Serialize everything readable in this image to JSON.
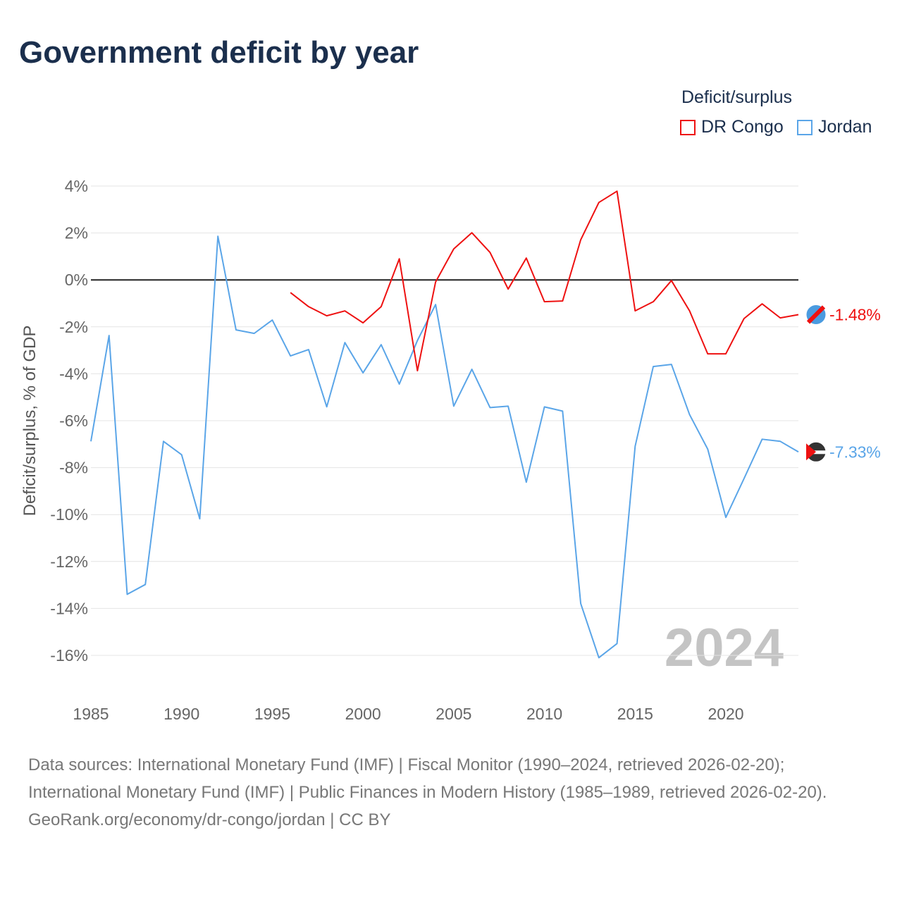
{
  "title": "Government deficit by year",
  "legend": {
    "title": "Deficit/surplus",
    "items": [
      {
        "name": "DR Congo",
        "color": "#ee1111"
      },
      {
        "name": "Jordan",
        "color": "#5aa5e8"
      }
    ]
  },
  "chart_data": {
    "type": "line",
    "title": "Government deficit by year",
    "ylabel": "Deficit/surplus, % of GDP",
    "xlabel": "",
    "ylim": [
      -16,
      4
    ],
    "xlim": [
      1985,
      2024
    ],
    "yticks": [
      4,
      2,
      0,
      -2,
      -4,
      -6,
      -8,
      -10,
      -12,
      -14,
      -16
    ],
    "ytick_labels": [
      "4%",
      "2%",
      "0%",
      "-2%",
      "-4%",
      "-6%",
      "-8%",
      "-10%",
      "-12%",
      "-14%",
      "-16%"
    ],
    "xticks": [
      1985,
      1990,
      1995,
      2000,
      2005,
      2010,
      2015,
      2020
    ],
    "xtick_labels": [
      "1985",
      "1990",
      "1995",
      "2000",
      "2005",
      "2010",
      "2015",
      "2020"
    ],
    "grid": true,
    "legend_position": "top-right",
    "year_watermark": "2024",
    "series": [
      {
        "name": "DR Congo",
        "color": "#ee1111",
        "end_label": "-1.48%",
        "start_year": 1996,
        "values": [
          -0.54,
          -1.14,
          -1.53,
          -1.32,
          -1.83,
          -1.14,
          0.9,
          -3.87,
          -0.09,
          1.32,
          2.01,
          1.17,
          -0.39,
          0.93,
          -0.93,
          -0.9,
          1.71,
          3.3,
          3.78,
          -1.32,
          -0.93,
          -0.03,
          -1.32,
          -3.15,
          -3.15,
          -1.65,
          -1.02,
          -1.62,
          -1.48
        ]
      },
      {
        "name": "Jordan",
        "color": "#5aa5e8",
        "end_label": "-7.33%",
        "start_year": 1985,
        "values": [
          -6.88,
          -2.37,
          -13.4,
          -12.98,
          -6.88,
          -7.45,
          -10.18,
          1.86,
          -2.13,
          -2.28,
          -1.71,
          -3.24,
          -2.97,
          -5.41,
          -2.67,
          -3.96,
          -2.76,
          -4.44,
          -2.58,
          -1.05,
          -5.38,
          -3.81,
          -5.44,
          -5.38,
          -8.62,
          -5.41,
          -5.59,
          -13.79,
          -16.1,
          -15.5,
          -7.09,
          -3.69,
          -3.6,
          -5.74,
          -7.21,
          -10.12,
          -8.47,
          -6.79,
          -6.88,
          -7.33
        ]
      }
    ]
  },
  "footer": {
    "sources": "Data sources: International Monetary Fund (IMF) | Fiscal Monitor (1990–2024, retrieved 2026-02-20); International Monetary Fund (IMF) | Public Finances in Modern History (1985–1989, retrieved 2026-02-20).",
    "credit": "GeoRank.org/economy/dr-congo/jordan | CC BY"
  }
}
